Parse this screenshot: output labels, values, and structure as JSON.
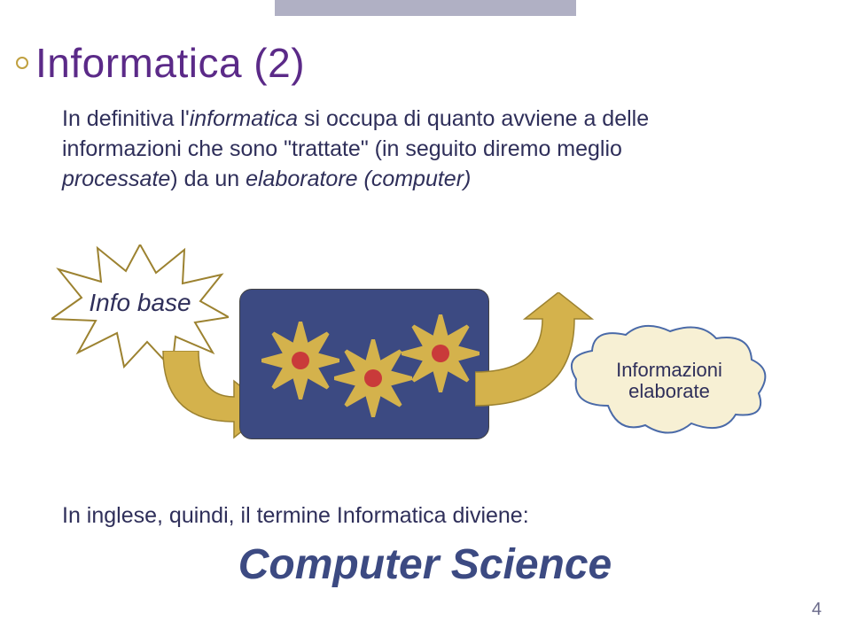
{
  "colors": {
    "title": "#5b2a88",
    "bodyText": "#2f2f5a",
    "topbar": "#b0b0c4",
    "accentYellow": "#d4b24c",
    "accentYellowStroke": "#9c8230",
    "processorFill": "#3c4a82",
    "gearFill": "#d4b24c",
    "gearCore": "#c93a3a",
    "cloudFill": "#f7f0d4",
    "cloudStroke": "#4a6aa8",
    "arrowFill": "#d4b24c",
    "arrowStroke": "#9c8230",
    "csText": "#3c4a82",
    "pageNum": "#6a6a8a"
  },
  "title": "Informatica (2)",
  "body": {
    "line1a": "In definitiva l'",
    "line1b": "informatica",
    "line1c": " si occupa di quanto avviene a delle",
    "line2a": "informazioni che sono \"trattate\" (in seguito diremo meglio",
    "line3a": "processate",
    "line3b": ") da un ",
    "line3c": "elaboratore (computer)"
  },
  "starburstLabel": "Info base",
  "cloudLabel1": "Informazioni",
  "cloudLabel2": "elaborate",
  "footer": "In inglese, quindi, il termine Informatica diviene:",
  "csLabel": "Computer Science",
  "pageNumber": "4"
}
